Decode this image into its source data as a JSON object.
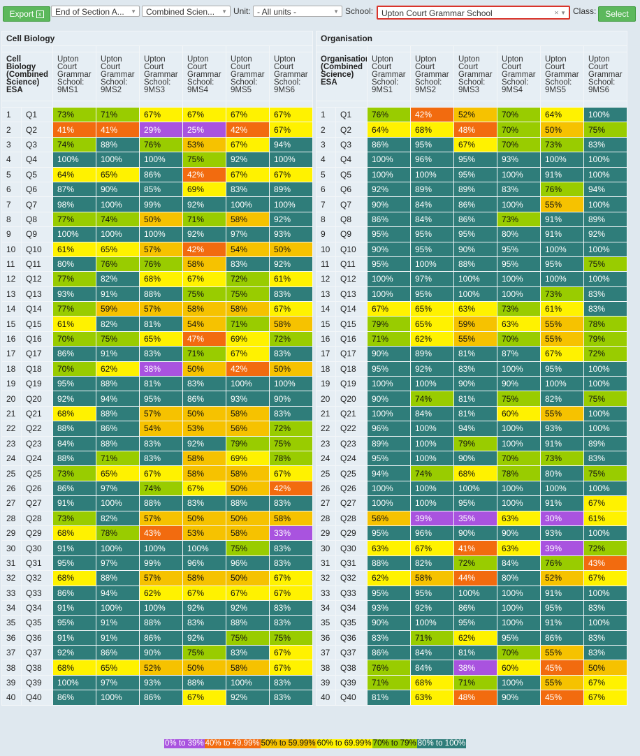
{
  "toolbar": {
    "export": "Export",
    "assessment": "End of Section A...",
    "subject": "Combined Scien...",
    "unit_label": "Unit:",
    "unit": "- All units -",
    "school_label": "School:",
    "school": "Upton Court Grammar School",
    "class_label": "Class:",
    "select": "Select"
  },
  "tables": [
    {
      "title": "Cell Biology",
      "header": "Cell Biology (Combined Science) ESA",
      "columns": [
        "Upton Court Grammar School: 9MS1",
        "Upton Court Grammar School: 9MS2",
        "Upton Court Grammar School: 9MS3",
        "Upton Court Grammar School: 9MS4",
        "Upton Court Grammar School: 9MS5",
        "Upton Court Grammar School: 9MS6"
      ],
      "rows": [
        [
          1,
          "Q1",
          "73%",
          "71%",
          "67%",
          "67%",
          "67%",
          "67%"
        ],
        [
          2,
          "Q2",
          "41%",
          "41%",
          "29%",
          "25%",
          "42%",
          "67%"
        ],
        [
          3,
          "Q3",
          "74%",
          "88%",
          "76%",
          "53%",
          "67%",
          "94%"
        ],
        [
          4,
          "Q4",
          "100%",
          "100%",
          "100%",
          "75%",
          "92%",
          "100%"
        ],
        [
          5,
          "Q5",
          "64%",
          "65%",
          "86%",
          "42%",
          "67%",
          "67%"
        ],
        [
          6,
          "Q6",
          "87%",
          "90%",
          "85%",
          "69%",
          "83%",
          "89%"
        ],
        [
          7,
          "Q7",
          "98%",
          "100%",
          "99%",
          "92%",
          "100%",
          "100%"
        ],
        [
          8,
          "Q8",
          "77%",
          "74%",
          "50%",
          "71%",
          "58%",
          "92%"
        ],
        [
          9,
          "Q9",
          "100%",
          "100%",
          "100%",
          "92%",
          "97%",
          "93%"
        ],
        [
          10,
          "Q10",
          "61%",
          "65%",
          "57%",
          "42%",
          "54%",
          "50%"
        ],
        [
          11,
          "Q11",
          "80%",
          "76%",
          "76%",
          "58%",
          "83%",
          "92%"
        ],
        [
          12,
          "Q12",
          "77%",
          "82%",
          "68%",
          "67%",
          "72%",
          "61%"
        ],
        [
          13,
          "Q13",
          "93%",
          "91%",
          "88%",
          "75%",
          "75%",
          "83%"
        ],
        [
          14,
          "Q14",
          "77%",
          "59%",
          "57%",
          "58%",
          "58%",
          "67%"
        ],
        [
          15,
          "Q15",
          "61%",
          "82%",
          "81%",
          "54%",
          "71%",
          "58%"
        ],
        [
          16,
          "Q16",
          "70%",
          "75%",
          "65%",
          "47%",
          "69%",
          "72%"
        ],
        [
          17,
          "Q17",
          "86%",
          "91%",
          "83%",
          "71%",
          "67%",
          "83%"
        ],
        [
          18,
          "Q18",
          "70%",
          "62%",
          "38%",
          "50%",
          "42%",
          "50%"
        ],
        [
          19,
          "Q19",
          "95%",
          "88%",
          "81%",
          "83%",
          "100%",
          "100%"
        ],
        [
          20,
          "Q20",
          "92%",
          "94%",
          "95%",
          "86%",
          "93%",
          "90%"
        ],
        [
          21,
          "Q21",
          "68%",
          "88%",
          "57%",
          "50%",
          "58%",
          "83%"
        ],
        [
          22,
          "Q22",
          "88%",
          "86%",
          "54%",
          "53%",
          "56%",
          "72%"
        ],
        [
          23,
          "Q23",
          "84%",
          "88%",
          "83%",
          "92%",
          "79%",
          "75%"
        ],
        [
          24,
          "Q24",
          "88%",
          "71%",
          "83%",
          "58%",
          "69%",
          "78%"
        ],
        [
          25,
          "Q25",
          "73%",
          "65%",
          "67%",
          "58%",
          "58%",
          "67%"
        ],
        [
          26,
          "Q26",
          "86%",
          "97%",
          "74%",
          "67%",
          "50%",
          "42%"
        ],
        [
          27,
          "Q27",
          "91%",
          "100%",
          "88%",
          "83%",
          "88%",
          "83%"
        ],
        [
          28,
          "Q28",
          "73%",
          "82%",
          "57%",
          "50%",
          "50%",
          "58%"
        ],
        [
          29,
          "Q29",
          "68%",
          "78%",
          "43%",
          "53%",
          "58%",
          "33%"
        ],
        [
          30,
          "Q30",
          "91%",
          "100%",
          "100%",
          "100%",
          "75%",
          "83%"
        ],
        [
          31,
          "Q31",
          "95%",
          "97%",
          "99%",
          "96%",
          "96%",
          "83%"
        ],
        [
          32,
          "Q32",
          "68%",
          "88%",
          "57%",
          "58%",
          "50%",
          "67%"
        ],
        [
          33,
          "Q33",
          "86%",
          "94%",
          "62%",
          "67%",
          "67%",
          "67%"
        ],
        [
          34,
          "Q34",
          "91%",
          "100%",
          "100%",
          "92%",
          "92%",
          "83%"
        ],
        [
          35,
          "Q35",
          "95%",
          "91%",
          "88%",
          "83%",
          "88%",
          "83%"
        ],
        [
          36,
          "Q36",
          "91%",
          "91%",
          "86%",
          "92%",
          "75%",
          "75%"
        ],
        [
          37,
          "Q37",
          "92%",
          "86%",
          "90%",
          "75%",
          "83%",
          "67%"
        ],
        [
          38,
          "Q38",
          "68%",
          "65%",
          "52%",
          "50%",
          "58%",
          "67%"
        ],
        [
          39,
          "Q39",
          "100%",
          "97%",
          "93%",
          "88%",
          "100%",
          "83%"
        ],
        [
          40,
          "Q40",
          "86%",
          "100%",
          "86%",
          "67%",
          "92%",
          "83%"
        ]
      ]
    },
    {
      "title": "Organisation",
      "header": "Organisation (Combined Science) ESA",
      "columns": [
        "Upton Court Grammar School: 9MS1",
        "Upton Court Grammar School: 9MS2",
        "Upton Court Grammar School: 9MS3",
        "Upton Court Grammar School: 9MS4",
        "Upton Court Grammar School: 9MS5",
        "Upton Court Grammar School: 9MS6"
      ],
      "rows": [
        [
          1,
          "Q1",
          "76%",
          "42%",
          "52%",
          "70%",
          "64%",
          "100%"
        ],
        [
          2,
          "Q2",
          "64%",
          "68%",
          "48%",
          "70%",
          "50%",
          "75%"
        ],
        [
          3,
          "Q3",
          "86%",
          "95%",
          "67%",
          "70%",
          "73%",
          "83%"
        ],
        [
          4,
          "Q4",
          "100%",
          "96%",
          "95%",
          "93%",
          "100%",
          "100%"
        ],
        [
          5,
          "Q5",
          "100%",
          "100%",
          "95%",
          "100%",
          "91%",
          "100%"
        ],
        [
          6,
          "Q6",
          "92%",
          "89%",
          "89%",
          "83%",
          "76%",
          "94%"
        ],
        [
          7,
          "Q7",
          "90%",
          "84%",
          "86%",
          "100%",
          "55%",
          "100%"
        ],
        [
          8,
          "Q8",
          "86%",
          "84%",
          "86%",
          "73%",
          "91%",
          "89%"
        ],
        [
          9,
          "Q9",
          "95%",
          "95%",
          "95%",
          "80%",
          "91%",
          "92%"
        ],
        [
          10,
          "Q10",
          "90%",
          "95%",
          "90%",
          "95%",
          "100%",
          "100%"
        ],
        [
          11,
          "Q11",
          "95%",
          "100%",
          "88%",
          "95%",
          "95%",
          "75%"
        ],
        [
          12,
          "Q12",
          "100%",
          "97%",
          "100%",
          "100%",
          "100%",
          "100%"
        ],
        [
          13,
          "Q13",
          "100%",
          "95%",
          "100%",
          "100%",
          "73%",
          "83%"
        ],
        [
          14,
          "Q14",
          "67%",
          "65%",
          "63%",
          "73%",
          "61%",
          "83%"
        ],
        [
          15,
          "Q15",
          "79%",
          "65%",
          "59%",
          "63%",
          "55%",
          "78%"
        ],
        [
          16,
          "Q16",
          "71%",
          "62%",
          "55%",
          "70%",
          "55%",
          "79%"
        ],
        [
          17,
          "Q17",
          "90%",
          "89%",
          "81%",
          "87%",
          "67%",
          "72%"
        ],
        [
          18,
          "Q18",
          "95%",
          "92%",
          "83%",
          "100%",
          "95%",
          "100%"
        ],
        [
          19,
          "Q19",
          "100%",
          "100%",
          "90%",
          "90%",
          "100%",
          "100%"
        ],
        [
          20,
          "Q20",
          "90%",
          "74%",
          "81%",
          "75%",
          "82%",
          "75%"
        ],
        [
          21,
          "Q21",
          "100%",
          "84%",
          "81%",
          "60%",
          "55%",
          "100%"
        ],
        [
          22,
          "Q22",
          "96%",
          "100%",
          "94%",
          "100%",
          "93%",
          "100%"
        ],
        [
          23,
          "Q23",
          "89%",
          "100%",
          "79%",
          "100%",
          "91%",
          "89%"
        ],
        [
          24,
          "Q24",
          "95%",
          "100%",
          "90%",
          "70%",
          "73%",
          "83%"
        ],
        [
          25,
          "Q25",
          "94%",
          "74%",
          "68%",
          "78%",
          "80%",
          "75%"
        ],
        [
          26,
          "Q26",
          "100%",
          "100%",
          "100%",
          "100%",
          "100%",
          "100%"
        ],
        [
          27,
          "Q27",
          "100%",
          "100%",
          "95%",
          "100%",
          "91%",
          "67%"
        ],
        [
          28,
          "Q28",
          "56%",
          "39%",
          "35%",
          "63%",
          "30%",
          "61%"
        ],
        [
          29,
          "Q29",
          "95%",
          "96%",
          "90%",
          "90%",
          "93%",
          "100%"
        ],
        [
          30,
          "Q30",
          "63%",
          "67%",
          "41%",
          "63%",
          "39%",
          "72%"
        ],
        [
          31,
          "Q31",
          "88%",
          "82%",
          "72%",
          "84%",
          "76%",
          "43%"
        ],
        [
          32,
          "Q32",
          "62%",
          "58%",
          "44%",
          "80%",
          "52%",
          "67%"
        ],
        [
          33,
          "Q33",
          "95%",
          "95%",
          "100%",
          "100%",
          "91%",
          "100%"
        ],
        [
          34,
          "Q34",
          "93%",
          "92%",
          "86%",
          "100%",
          "95%",
          "83%"
        ],
        [
          35,
          "Q35",
          "90%",
          "100%",
          "95%",
          "100%",
          "91%",
          "100%"
        ],
        [
          36,
          "Q36",
          "83%",
          "71%",
          "62%",
          "95%",
          "86%",
          "83%"
        ],
        [
          37,
          "Q37",
          "86%",
          "84%",
          "81%",
          "70%",
          "55%",
          "83%"
        ],
        [
          38,
          "Q38",
          "76%",
          "84%",
          "38%",
          "60%",
          "45%",
          "50%"
        ],
        [
          39,
          "Q39",
          "71%",
          "68%",
          "71%",
          "100%",
          "55%",
          "67%"
        ],
        [
          40,
          "Q40",
          "81%",
          "63%",
          "48%",
          "90%",
          "45%",
          "67%"
        ]
      ]
    }
  ],
  "legend": [
    {
      "label": "0% to 39%",
      "color": "#a953df",
      "text": "#ffffff",
      "min": 0
    },
    {
      "label": "40% to 49.99%",
      "color": "#f26b0f",
      "text": "#ffffff",
      "min": 40
    },
    {
      "label": "50% to 59.99%",
      "color": "#f6c200",
      "text": "#111111",
      "min": 50
    },
    {
      "label": "60% to 69.99%",
      "color": "#fff200",
      "text": "#111111",
      "min": 60
    },
    {
      "label": "70% to 79%",
      "color": "#99cc00",
      "text": "#111111",
      "min": 70
    },
    {
      "label": "80% to 100%",
      "color": "#2f7d7a",
      "text": "#ffffff",
      "min": 80
    }
  ]
}
